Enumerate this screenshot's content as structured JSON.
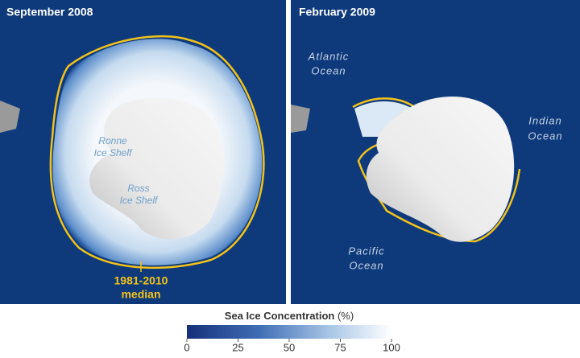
{
  "panels": [
    {
      "title": "September 2008",
      "labels": [
        {
          "lines": [
            "Ronne",
            "Ice Shelf"
          ]
        },
        {
          "lines": [
            "Ross",
            "Ice Shelf"
          ]
        }
      ],
      "median_label": [
        "1981-2010",
        "median"
      ]
    },
    {
      "title": "February 2009",
      "labels": [
        {
          "lines": [
            "Atlantic",
            "Ocean"
          ]
        },
        {
          "lines": [
            "Indian",
            "Ocean"
          ]
        },
        {
          "lines": [
            "Pacific",
            "Ocean"
          ]
        }
      ]
    }
  ],
  "colorbar": {
    "title": "Sea Ice Concentration",
    "unit": "(%)",
    "range": [
      0,
      100
    ],
    "ticks": [
      0,
      25,
      50,
      75,
      100
    ]
  }
}
